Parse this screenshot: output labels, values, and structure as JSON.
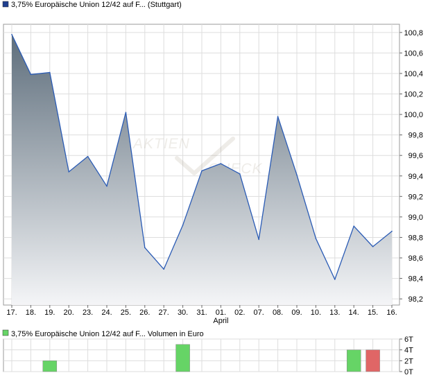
{
  "chart_data": [
    {
      "type": "area",
      "legend": "3,75% Europäische Union 12/42 auf F... (Stuttgart)",
      "colors": {
        "line": "#2a5bb5",
        "fill_top": "#5e6e7c",
        "fill_bottom": "#f4f5f7",
        "legend_swatch": "#1f3f8f",
        "grid": "#dddddd"
      },
      "watermark": [
        "AKTIEN",
        "CHECK"
      ],
      "x": [
        "17.",
        "18.",
        "19.",
        "20.",
        "23.",
        "24.",
        "25.",
        "26.",
        "27.",
        "30.",
        "31.",
        "01.",
        "02.",
        "07.",
        "08.",
        "09.",
        "10.",
        "13.",
        "14.",
        "15.",
        "16."
      ],
      "x_sublabel": {
        "at": "01.",
        "text": "April"
      },
      "values": [
        100.78,
        100.39,
        100.41,
        99.44,
        99.59,
        99.3,
        100.02,
        98.7,
        98.49,
        98.92,
        99.45,
        99.52,
        99.42,
        98.78,
        99.98,
        99.41,
        98.79,
        98.39,
        98.91,
        98.71,
        98.86
      ],
      "yticks": [
        "98,2",
        "98,4",
        "98,6",
        "98,8",
        "99,0",
        "99,2",
        "99,4",
        "99,6",
        "99,8",
        "100,0",
        "100,2",
        "100,4",
        "100,6",
        "100,8"
      ],
      "ylim": [
        98.14,
        100.88
      ],
      "grid": true
    },
    {
      "type": "bar",
      "legend": "3,75% Europäische Union 12/42 auf F... Volumen in Euro",
      "colors": {
        "up": "#66d466",
        "down": "#e06666",
        "legend_swatch": "#66d466"
      },
      "categories": [
        "17.",
        "18.",
        "19.",
        "20.",
        "23.",
        "24.",
        "25.",
        "26.",
        "27.",
        "30.",
        "31.",
        "01.",
        "02.",
        "07.",
        "08.",
        "09.",
        "10.",
        "13.",
        "14.",
        "15.",
        "16."
      ],
      "bars": [
        {
          "category": "19.",
          "value": 2000,
          "direction": "up"
        },
        {
          "category": "30.",
          "value": 5000,
          "direction": "up"
        },
        {
          "category": "14.",
          "value": 4000,
          "direction": "up"
        },
        {
          "category": "15.",
          "value": 4000,
          "direction": "down"
        }
      ],
      "yticks": [
        "0T",
        "2T",
        "4T",
        "6T"
      ],
      "ylim": [
        0,
        6000
      ]
    }
  ]
}
